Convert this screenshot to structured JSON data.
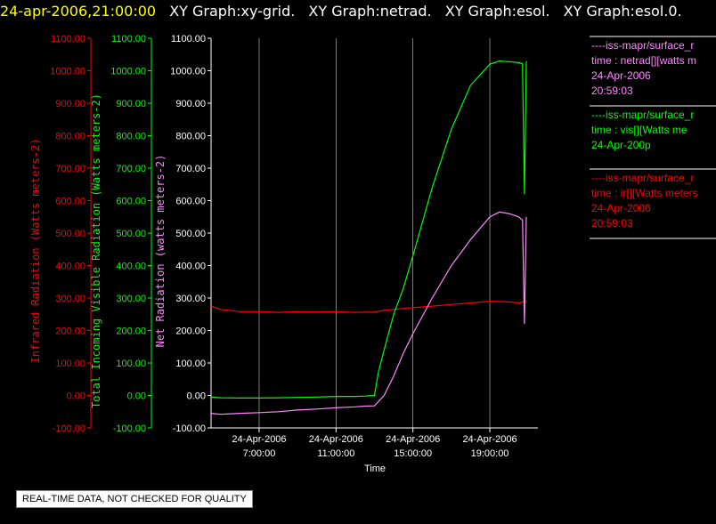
{
  "header": {
    "timestamp": "24-apr-2006,21:00:00",
    "graphs": [
      "XY Graph:xy-grid.",
      "XY Graph:netrad.",
      "XY Graph:esol.",
      "XY Graph:esol.0."
    ]
  },
  "notice": "REAL-TIME DATA, NOT CHECKED FOR QUALITY",
  "colors": {
    "ir": "#ff0000",
    "vis": "#00ff00",
    "netrad": "#ff88ff",
    "axis": "#ffffff",
    "grid": "#ffffff"
  },
  "legend": [
    {
      "color": "#ff88ff",
      "lines": [
        "----iss-mapr/surface_r",
        "time : netrad[][watts m",
        "24-Apr-2006",
        "20:59:03"
      ]
    },
    {
      "color": "#00ff00",
      "lines": [
        "----iss-mapr/surface_r",
        "time : vis[][Watts me",
        "24-Apr-200p"
      ]
    },
    {
      "color": "#ff0000",
      "lines": [
        "----iss-mapr/surface_r",
        "time : ir[][Watts meters",
        "24-Apr-2006",
        "20:59:03"
      ]
    }
  ],
  "chart_data": {
    "type": "line",
    "x_unit": "hours since 24-Apr-2006 00:00 (local axis, 24-Apr-2006)",
    "xlim": [
      4.5,
      21.5
    ],
    "x_ticks": [
      {
        "x": 7,
        "line1": "24-Apr-2006",
        "line2": "7:00:00"
      },
      {
        "x": 11,
        "line1": "24-Apr-2006",
        "line2": "11:00:00"
      },
      {
        "x": 15,
        "line1": "24-Apr-2006",
        "line2": "15:00:00"
      },
      {
        "x": 19,
        "line1": "24-Apr-2006",
        "line2": "19:00:00"
      }
    ],
    "xlabel": "Time",
    "ylim": [
      -100,
      1100
    ],
    "y_ticks": [
      "1100.00",
      "1000.00",
      "900.00",
      "800.00",
      "700.00",
      "600.00",
      "500.00",
      "400.00",
      "300.00",
      "200.00",
      "100.00",
      "0.00",
      "-100.00"
    ],
    "y_axes": [
      {
        "key": "ir",
        "label": "Infrared Radiation (Watts meters-2)"
      },
      {
        "key": "vis",
        "label": "Total Incoming Visible Radiation (Watts meters-2)"
      },
      {
        "key": "netrad",
        "label": "Net Radiation (watts meters-2)"
      }
    ],
    "grid": true,
    "series": [
      {
        "key": "ir",
        "x": [
          4.5,
          5.0,
          6.0,
          7.0,
          8.0,
          9.0,
          10.0,
          11.0,
          12.0,
          13.0,
          13.5,
          14.0,
          14.5,
          15.0,
          16.0,
          17.0,
          18.0,
          19.0,
          20.0,
          20.5,
          20.9
        ],
        "y": [
          275,
          265,
          258,
          258,
          256,
          258,
          257,
          258,
          256,
          257,
          262,
          265,
          268,
          270,
          275,
          280,
          285,
          290,
          288,
          285,
          290
        ]
      },
      {
        "key": "vis",
        "x": [
          4.5,
          5.0,
          6.0,
          7.0,
          8.0,
          9.0,
          10.0,
          11.0,
          12.0,
          12.5,
          13.0,
          13.2,
          13.5,
          14.0,
          14.5,
          15.0,
          16.0,
          17.0,
          18.0,
          19.0,
          19.5,
          20.0,
          20.5,
          20.7,
          20.8,
          20.9
        ],
        "y": [
          -5,
          -7,
          -8,
          -8,
          -7,
          -6,
          -5,
          -3,
          -3,
          -2,
          0,
          70,
          140,
          250,
          330,
          430,
          640,
          820,
          955,
          1020,
          1030,
          1028,
          1025,
          1022,
          620,
          1030
        ]
      },
      {
        "key": "netrad",
        "x": [
          4.5,
          5.0,
          6.0,
          7.0,
          8.0,
          9.0,
          10.0,
          11.0,
          12.0,
          12.5,
          13.0,
          13.5,
          14.0,
          14.5,
          15.0,
          16.0,
          17.0,
          18.0,
          19.0,
          19.5,
          20.0,
          20.5,
          20.7,
          20.8,
          20.9
        ],
        "y": [
          -55,
          -58,
          -55,
          -53,
          -50,
          -45,
          -42,
          -38,
          -35,
          -33,
          -32,
          0,
          60,
          130,
          190,
          300,
          400,
          480,
          550,
          565,
          560,
          550,
          540,
          220,
          550
        ]
      }
    ]
  }
}
